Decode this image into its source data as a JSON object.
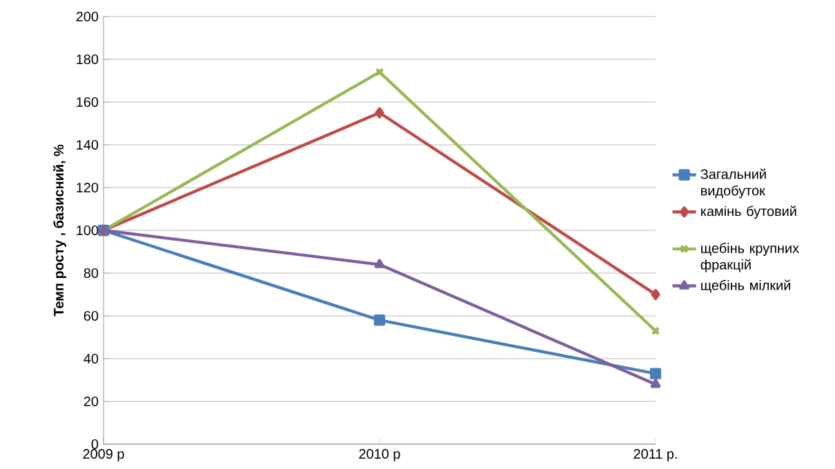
{
  "chart_data": {
    "type": "line",
    "ylabel": "Темп росту , базисний, %",
    "categories": [
      "2009 р",
      "2010 р",
      "2011 р."
    ],
    "series": [
      {
        "name": "Загальний видобуток",
        "color": "#4a7ebb",
        "marker": "square",
        "values": [
          100,
          58,
          33
        ]
      },
      {
        "name": "камінь бутовий",
        "color": "#be4b48",
        "marker": "diamond",
        "values": [
          100,
          155,
          70
        ]
      },
      {
        "name": "щебінь крупних фракцій",
        "color": "#98b954",
        "marker": "cross",
        "values": [
          100,
          174,
          53
        ]
      },
      {
        "name": "щебінь мілкий",
        "color": "#7d60a0",
        "marker": "triangle",
        "values": [
          100,
          84,
          28
        ]
      }
    ],
    "ylim": [
      0,
      200
    ],
    "yticks": [
      0,
      20,
      40,
      60,
      80,
      100,
      120,
      140,
      160,
      180,
      200
    ],
    "grid": "y",
    "legend": "right",
    "line_style": "solid"
  }
}
